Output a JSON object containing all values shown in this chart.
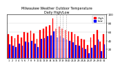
{
  "title": "Milwaukee Weather Outdoor Temperature\nDaily High/Low",
  "title_fontsize": 3.5,
  "background_color": "#ffffff",
  "bar_color_high": "#ff0000",
  "bar_color_low": "#0000ff",
  "legend_high": "High",
  "legend_low": "Low",
  "ylim": [
    0,
    100
  ],
  "yticks": [
    20,
    40,
    60,
    80,
    100
  ],
  "ytick_labels": [
    "20",
    "40",
    "60",
    "80",
    "100"
  ],
  "ylabel_fontsize": 3.0,
  "xlabel_fontsize": 2.5,
  "num_bars": 31,
  "highs": [
    55,
    50,
    46,
    53,
    48,
    60,
    58,
    63,
    56,
    45,
    65,
    68,
    72,
    75,
    92,
    68,
    72,
    68,
    65,
    62,
    60,
    55,
    50,
    45,
    42,
    30,
    48,
    55,
    65,
    38,
    55
  ],
  "lows": [
    32,
    28,
    26,
    34,
    28,
    38,
    36,
    40,
    34,
    26,
    44,
    46,
    50,
    52,
    62,
    48,
    50,
    46,
    42,
    40,
    36,
    30,
    28,
    24,
    20,
    12,
    24,
    30,
    42,
    16,
    32
  ],
  "xtick_labels": [
    "1",
    "2",
    "3",
    "4",
    "5",
    "6",
    "7",
    "8",
    "9",
    "10",
    "11",
    "12",
    "13",
    "14",
    "15",
    "16",
    "17",
    "18",
    "19",
    "20",
    "21",
    "22",
    "23",
    "24",
    "25",
    "26",
    "27",
    "28",
    "29",
    "30",
    "31"
  ],
  "dashed_bar_indices": [
    15,
    16,
    17,
    18
  ],
  "grid_color": "#cccccc"
}
